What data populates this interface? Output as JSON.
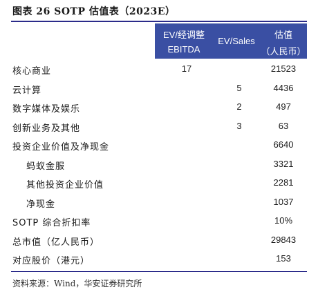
{
  "title": "图表 26 SOTP 估值表（2023E）",
  "columns": {
    "ev_ebitda": [
      "EV/经调整",
      "EBITDA"
    ],
    "ev_sales": "EV/Sales",
    "value": [
      "估值",
      "（人民币）"
    ]
  },
  "rows": [
    {
      "label": "核心商业",
      "ev_ebitda": "17",
      "ev_sales": "",
      "value": "21523",
      "indent": false
    },
    {
      "label": "云计算",
      "ev_ebitda": "",
      "ev_sales": "5",
      "value": "4436",
      "indent": false
    },
    {
      "label": "数字媒体及娱乐",
      "ev_ebitda": "",
      "ev_sales": "2",
      "value": "497",
      "indent": false
    },
    {
      "label": "创新业务及其他",
      "ev_ebitda": "",
      "ev_sales": "3",
      "value": "63",
      "indent": false
    },
    {
      "label": "投资企业价值及净现金",
      "ev_ebitda": "",
      "ev_sales": "",
      "value": "6640",
      "indent": false
    },
    {
      "label": "蚂蚁金服",
      "ev_ebitda": "",
      "ev_sales": "",
      "value": "3321",
      "indent": true
    },
    {
      "label": "其他投资企业价值",
      "ev_ebitda": "",
      "ev_sales": "",
      "value": "2281",
      "indent": true
    },
    {
      "label": "净现金",
      "ev_ebitda": "",
      "ev_sales": "",
      "value": "1037",
      "indent": true
    },
    {
      "label": "SOTP 综合折扣率",
      "ev_ebitda": "",
      "ev_sales": "",
      "value": "10%",
      "indent": false
    },
    {
      "label": "总市值（亿人民币）",
      "ev_ebitda": "",
      "ev_sales": "",
      "value": "29843",
      "indent": false
    },
    {
      "label": "对应股价（港元）",
      "ev_ebitda": "",
      "ev_sales": "",
      "value": "153",
      "indent": false
    }
  ],
  "source": "资料来源：Wind，华安证券研究所",
  "colors": {
    "header_bg": "#3a4fa3",
    "rule": "#2b2b8a"
  }
}
